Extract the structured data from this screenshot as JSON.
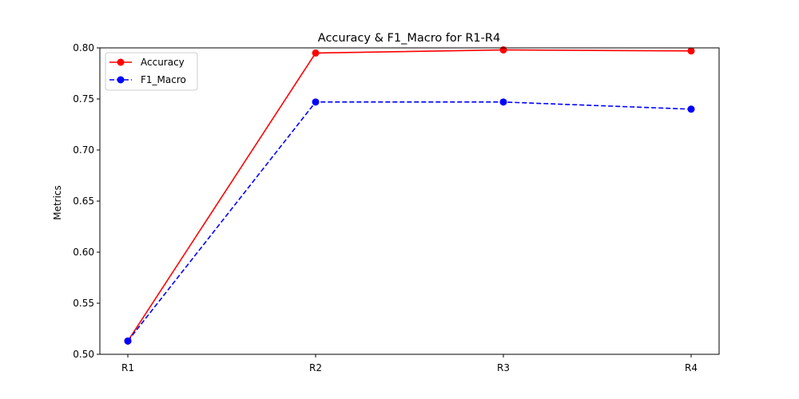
{
  "chart_data": {
    "type": "line",
    "title": "Accuracy & F1_Macro for R1-R4",
    "xlabel": "",
    "ylabel": "Metrics",
    "categories": [
      "R1",
      "R2",
      "R3",
      "R4"
    ],
    "series": [
      {
        "name": "Accuracy",
        "values": [
          0.513,
          0.795,
          0.798,
          0.797
        ],
        "color": "#ff0000",
        "line_style": "solid",
        "marker": "circle"
      },
      {
        "name": "F1_Macro",
        "values": [
          0.513,
          0.747,
          0.747,
          0.74
        ],
        "color": "#0000ff",
        "line_style": "dashed",
        "marker": "circle"
      }
    ],
    "ylim": [
      0.5,
      0.8
    ],
    "y_ticks": [
      "0.50",
      "0.55",
      "0.60",
      "0.65",
      "0.70",
      "0.75",
      "0.80"
    ],
    "grid": false,
    "legend_position": "top-left"
  }
}
